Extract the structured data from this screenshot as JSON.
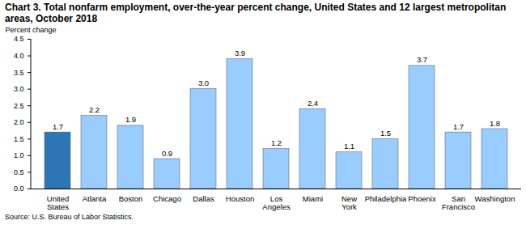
{
  "chart_data": {
    "type": "bar",
    "title": "Chart 3. Total nonfarm employment, over-the-year percent change, United States and 12 largest metropolitan areas, October 2018",
    "y_label": "Percent change",
    "source": "Source: U.S. Bureau of Labor Statistics.",
    "categories": [
      "United States",
      "Atlanta",
      "Boston",
      "Chicago",
      "Dallas",
      "Houston",
      "Los Angeles",
      "Miami",
      "New York",
      "Philadelphia",
      "Phoenix",
      "San Francisco",
      "Washington"
    ],
    "values": [
      1.7,
      2.2,
      1.9,
      0.9,
      3.0,
      3.9,
      1.2,
      2.4,
      1.1,
      1.5,
      3.7,
      1.7,
      1.8
    ],
    "value_labels": [
      "1.7",
      "2.2",
      "1.9",
      "0.9",
      "3.0",
      "3.9",
      "1.2",
      "2.4",
      "1.1",
      "1.5",
      "3.7",
      "1.7",
      "1.8"
    ],
    "colors": [
      "#2e75b6",
      "#99ccff",
      "#99ccff",
      "#99ccff",
      "#99ccff",
      "#99ccff",
      "#99ccff",
      "#99ccff",
      "#99ccff",
      "#99ccff",
      "#99ccff",
      "#99ccff",
      "#99ccff"
    ],
    "ylim": [
      0,
      4.5
    ],
    "yticks": [
      {
        "value": 0,
        "label": "0.0"
      },
      0.5,
      {
        "value": 1,
        "label": "1.0"
      },
      1.5,
      {
        "value": 2,
        "label": "2.0"
      },
      2.5,
      {
        "value": 3,
        "label": "3.0"
      },
      3.5,
      {
        "value": 4,
        "label": "4.0"
      },
      4.5
    ],
    "grid": false,
    "data_labels": true
  }
}
